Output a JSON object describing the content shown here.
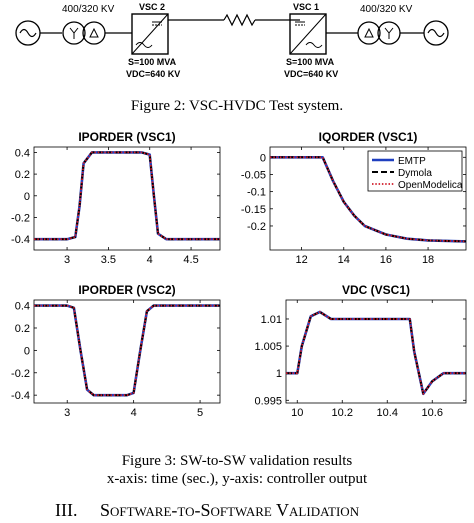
{
  "system_diagram": {
    "left_voltage": "400/320 KV",
    "right_voltage": "400/320 KV",
    "vsc2_label": "VSC 2",
    "vsc1_label": "VSC 1",
    "vsc2_rating_s": "S=100 MVA",
    "vsc2_rating_vdc": "VDC=640 KV",
    "vsc1_rating_s": "S=100 MVA",
    "vsc1_rating_vdc": "VDC=640 KV"
  },
  "figure2_caption": "Figure 2: VSC-HVDC Test system.",
  "figure3_caption_line1": "Figure 3: SW-to-SW validation results",
  "figure3_caption_line2": "x-axis: time (sec.), y-axis: controller output",
  "section_heading": "III.     Software-to-Software Validation",
  "legend": [
    "EMTP",
    "Dymola",
    "OpenModelica"
  ],
  "colors": {
    "emtp": "#1f3fbf",
    "dymola": "#000000",
    "openmodelica": "#d01c2a"
  },
  "chart_data": [
    {
      "type": "line",
      "title": "IPORDER (VSC1)",
      "xlim": [
        2.6,
        4.85
      ],
      "ylim": [
        -0.5,
        0.45
      ],
      "xticks": [
        3,
        3.5,
        4,
        4.5
      ],
      "xtick_labels": [
        "3",
        "3.5",
        "4",
        "4.5"
      ],
      "yticks": [
        -0.4,
        -0.2,
        0,
        0.2,
        0.4
      ],
      "ytick_labels": [
        "-0.4",
        "-0.2",
        "0",
        "0.2",
        "0.4"
      ],
      "x": [
        2.6,
        3.0,
        3.1,
        3.15,
        3.2,
        3.3,
        3.9,
        4.0,
        4.05,
        4.1,
        4.2,
        4.85
      ],
      "y": [
        -0.4,
        -0.4,
        -0.38,
        -0.1,
        0.3,
        0.4,
        0.4,
        0.38,
        0.0,
        -0.35,
        -0.4,
        -0.4
      ],
      "series": [
        {
          "name": "EMTP"
        },
        {
          "name": "Dymola"
        },
        {
          "name": "OpenModelica"
        }
      ],
      "legend": false
    },
    {
      "type": "line",
      "title": "IQORDER (VSC1)",
      "xlim": [
        10.5,
        19.8
      ],
      "ylim": [
        -0.27,
        0.03
      ],
      "xticks": [
        12,
        14,
        16,
        18
      ],
      "xtick_labels": [
        "12",
        "14",
        "16",
        "18"
      ],
      "yticks": [
        -0.2,
        -0.15,
        -0.1,
        -0.05,
        0
      ],
      "ytick_labels": [
        "-0.2",
        "-0.15",
        "-0.1",
        "-0.05",
        "0"
      ],
      "x": [
        10.5,
        13.0,
        13.5,
        14.0,
        14.5,
        15.0,
        16.0,
        17.0,
        18.0,
        19.8
      ],
      "y": [
        0.0,
        0.0,
        -0.07,
        -0.13,
        -0.17,
        -0.2,
        -0.225,
        -0.237,
        -0.242,
        -0.245
      ],
      "series": [
        {
          "name": "EMTP"
        },
        {
          "name": "Dymola"
        },
        {
          "name": "OpenModelica"
        }
      ],
      "legend": true,
      "legend_position": "top-right"
    },
    {
      "type": "line",
      "title": "IPORDER (VSC2)",
      "xlim": [
        2.5,
        5.3
      ],
      "ylim": [
        -0.47,
        0.45
      ],
      "xticks": [
        3,
        4,
        5
      ],
      "xtick_labels": [
        "3",
        "4",
        "5"
      ],
      "yticks": [
        -0.4,
        -0.2,
        0,
        0.2,
        0.4
      ],
      "ytick_labels": [
        "-0.4",
        "-0.2",
        "0",
        "0.2",
        "0.4"
      ],
      "x": [
        2.5,
        3.0,
        3.1,
        3.2,
        3.3,
        3.4,
        3.9,
        4.0,
        4.1,
        4.2,
        4.3,
        5.3
      ],
      "y": [
        0.4,
        0.4,
        0.38,
        0.0,
        -0.35,
        -0.4,
        -0.4,
        -0.38,
        0.0,
        0.35,
        0.4,
        0.4
      ],
      "series": [
        {
          "name": "EMTP"
        },
        {
          "name": "Dymola"
        },
        {
          "name": "OpenModelica"
        }
      ],
      "legend": false
    },
    {
      "type": "line",
      "title": "VDC (VSC1)",
      "xlim": [
        9.95,
        10.75
      ],
      "ylim": [
        0.9945,
        1.0135
      ],
      "xticks": [
        10,
        10.2,
        10.4,
        10.6
      ],
      "xtick_labels": [
        "10",
        "10.2",
        "10.4",
        "10.6"
      ],
      "yticks": [
        0.995,
        1,
        1.005,
        1.01
      ],
      "ytick_labels": [
        "0.995",
        "1",
        "1.005",
        "1.01"
      ],
      "x": [
        9.95,
        10.0,
        10.02,
        10.06,
        10.1,
        10.15,
        10.5,
        10.52,
        10.56,
        10.6,
        10.65,
        10.75
      ],
      "y": [
        1.0,
        1.0,
        1.005,
        1.0105,
        1.0113,
        1.01,
        1.01,
        1.004,
        0.9962,
        0.9985,
        1.0,
        1.0
      ],
      "series": [
        {
          "name": "EMTP"
        },
        {
          "name": "Dymola"
        },
        {
          "name": "OpenModelica"
        }
      ],
      "legend": false
    }
  ]
}
